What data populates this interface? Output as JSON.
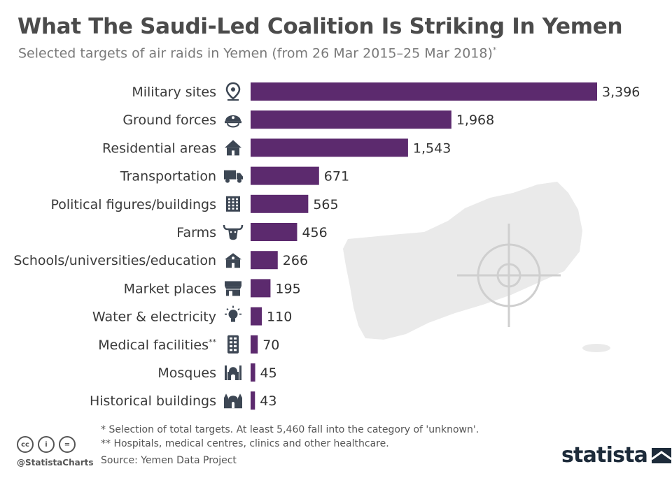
{
  "header": {
    "title": "What The Saudi-Led Coalition Is Striking In Yemen",
    "subtitle": "Selected targets of air raids in Yemen (from 26 Mar 2015–25 Mar 2018)",
    "subtitle_marker": "*"
  },
  "chart_data": {
    "type": "bar",
    "orientation": "horizontal",
    "title": "What The Saudi-Led Coalition Is Striking In Yemen",
    "subtitle": "Selected targets of air raids in Yemen (from 26 Mar 2015–25 Mar 2018)",
    "categories": [
      "Military sites",
      "Ground forces",
      "Residential areas",
      "Transportation",
      "Political figures/buildings",
      "Farms",
      "Schools/universities/education",
      "Market places",
      "Water & electricity",
      "Medical facilities",
      "Mosques",
      "Historical buildings"
    ],
    "category_markers": [
      "",
      "",
      "",
      "",
      "",
      "",
      "",
      "",
      "",
      "**",
      "",
      ""
    ],
    "values": [
      3396,
      1968,
      1543,
      671,
      565,
      456,
      266,
      195,
      110,
      70,
      45,
      43
    ],
    "value_labels": [
      "3,396",
      "1,968",
      "1,543",
      "671",
      "565",
      "456",
      "266",
      "195",
      "110",
      "70",
      "45",
      "43"
    ],
    "icons": [
      "map-pin-icon",
      "helmet-icon",
      "house-icon",
      "truck-icon",
      "building-icon",
      "bull-icon",
      "school-icon",
      "market-stall-icon",
      "lightbulb-icon",
      "hospital-building-icon",
      "mosque-icon",
      "historical-building-icon"
    ],
    "xlim": [
      0,
      3396
    ],
    "bar_color": "#5c2a6e",
    "background_graphic": "yemen-map-with-crosshair",
    "grid": false,
    "legend": "none"
  },
  "footnotes": [
    "*    Selection of total targets. At least 5,460 fall into the category of 'unknown'.",
    "** Hospitals, medical centres, clinics and other healthcare."
  ],
  "source": "Source: Yemen Data Project",
  "credits": {
    "handle": "@StatistaCharts",
    "license_icons": [
      "cc",
      "i",
      "="
    ]
  },
  "brand": {
    "name": "statista"
  },
  "colors": {
    "bar": "#5c2a6e",
    "title": "#4b4b4b",
    "map": "#eaeaea",
    "icon": "#3d4754"
  }
}
